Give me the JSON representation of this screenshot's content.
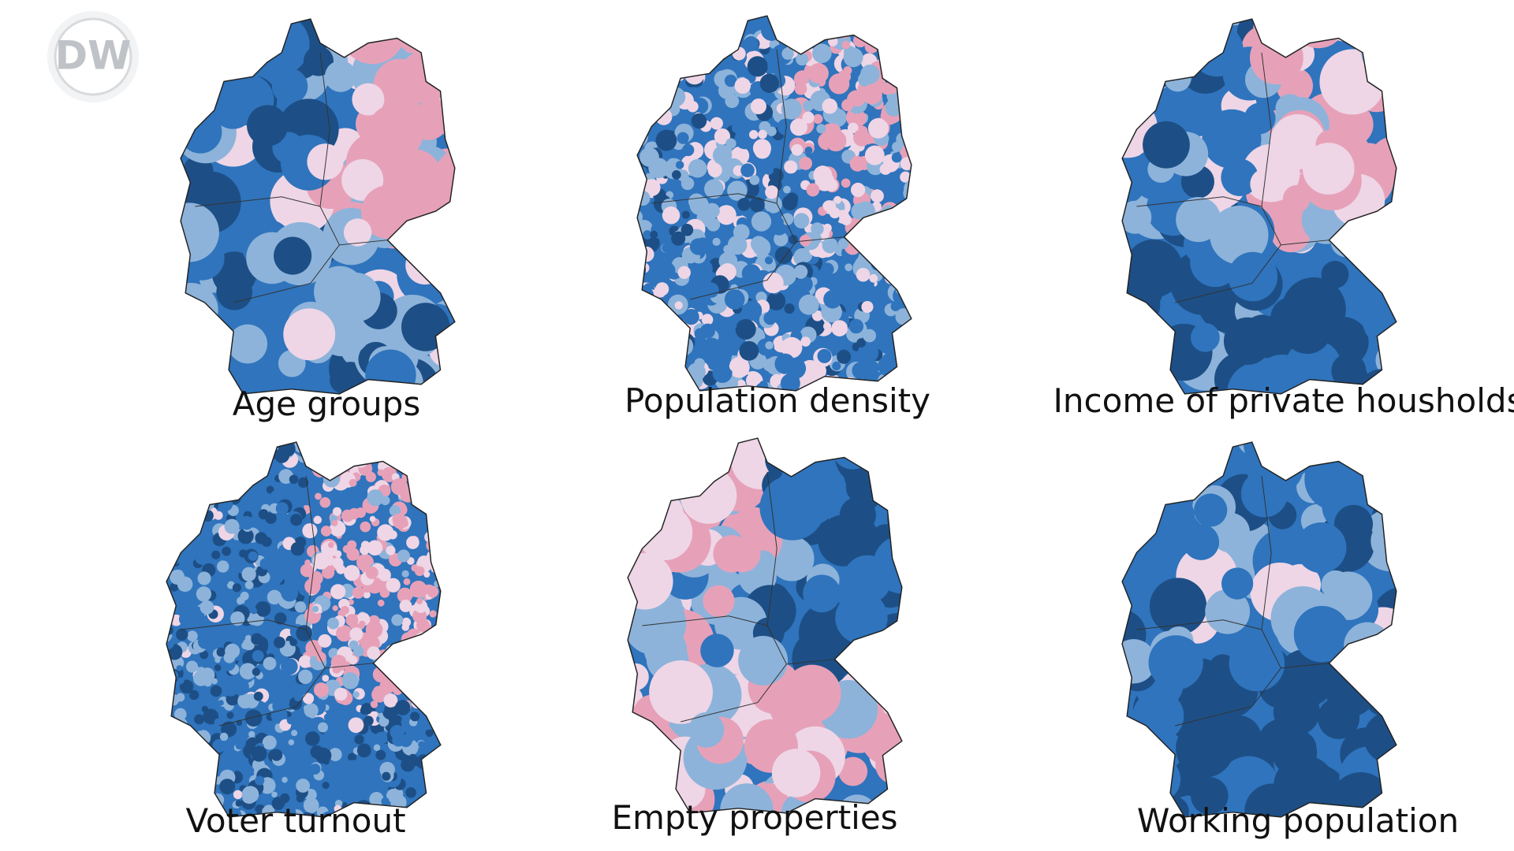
{
  "logo": "DW",
  "maps": [
    {
      "caption": "Age groups"
    },
    {
      "caption": "Population density"
    },
    {
      "caption": "Income of private housholds"
    },
    {
      "caption": "Voter turnout"
    },
    {
      "caption": "Empty properties"
    },
    {
      "caption": "Working population"
    }
  ]
}
